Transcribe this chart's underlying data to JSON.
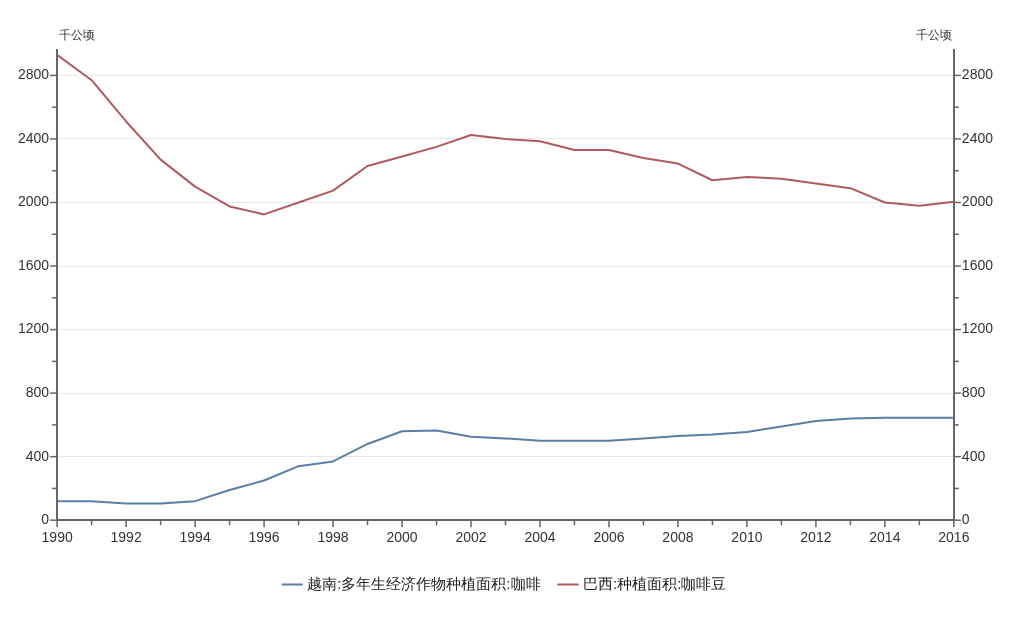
{
  "chart_data": {
    "type": "line",
    "ylabel": "千公顷",
    "y2label": "千公顷",
    "x": [
      1990,
      1991,
      1992,
      1993,
      1994,
      1995,
      1996,
      1997,
      1998,
      1999,
      2000,
      2001,
      2002,
      2003,
      2004,
      2005,
      2006,
      2007,
      2008,
      2009,
      2010,
      2011,
      2012,
      2013,
      2014,
      2015,
      2016
    ],
    "series": [
      {
        "name": "越南:多年生经济作物种植面积:咖啡",
        "color": "#5b7fa6",
        "values": [
          120,
          120,
          105,
          105,
          120,
          190,
          250,
          340,
          370,
          480,
          560,
          565,
          525,
          515,
          500,
          500,
          500,
          515,
          530,
          540,
          555,
          590,
          625,
          640,
          645,
          645,
          645
        ]
      },
      {
        "name": "巴西:种植面积:咖啡豆",
        "color": "#b05a60",
        "values": [
          2930,
          2770,
          2510,
          2270,
          2100,
          1975,
          1925,
          2000,
          2075,
          2230,
          2290,
          2350,
          2425,
          2400,
          2385,
          2330,
          2330,
          2280,
          2245,
          2140,
          2160,
          2150,
          2120,
          2090,
          2000,
          1980,
          2005
        ]
      }
    ],
    "xlim": [
      1990,
      2016
    ],
    "xticks": [
      1990,
      {
        "value": 1991,
        "label": null
      },
      1992,
      {
        "value": 1993,
        "label": null
      },
      1994,
      {
        "value": 1995,
        "label": null
      },
      1996,
      {
        "value": 1997,
        "label": null
      },
      1998,
      {
        "value": 1999,
        "label": null
      },
      2000,
      {
        "value": 2001,
        "label": null
      },
      2002,
      {
        "value": 2003,
        "label": null
      },
      2004,
      {
        "value": 2005,
        "label": null
      },
      2006,
      {
        "value": 2007,
        "label": null
      },
      2008,
      {
        "value": 2009,
        "label": null
      },
      2010,
      {
        "value": 2011,
        "label": null
      },
      2012,
      {
        "value": 2013,
        "label": null
      },
      2014,
      {
        "value": 2015,
        "label": null
      },
      2016
    ],
    "ylim": [
      0,
      2960
    ],
    "yticks": [
      0,
      {
        "value": 200,
        "label": null
      },
      400,
      {
        "value": 600,
        "label": null
      },
      800,
      {
        "value": 1000,
        "label": null
      },
      1200,
      {
        "value": 1400,
        "label": null
      },
      1600,
      {
        "value": 1800,
        "label": null
      },
      2000,
      {
        "value": 2200,
        "label": null
      },
      2400,
      {
        "value": 2600,
        "label": null
      },
      2800
    ],
    "y2lim": [
      0,
      2960
    ],
    "y2ticks": [
      0,
      {
        "value": 200,
        "label": null
      },
      400,
      {
        "value": 600,
        "label": null
      },
      800,
      {
        "value": 1000,
        "label": null
      },
      1200,
      {
        "value": 1400,
        "label": null
      },
      1600,
      {
        "value": 1800,
        "label": null
      },
      2000,
      {
        "value": 2200,
        "label": null
      },
      2400,
      {
        "value": 2600,
        "label": null
      },
      2800
    ],
    "grid": "y",
    "legend": "bottom",
    "marker": "none",
    "line_style": "solid"
  }
}
